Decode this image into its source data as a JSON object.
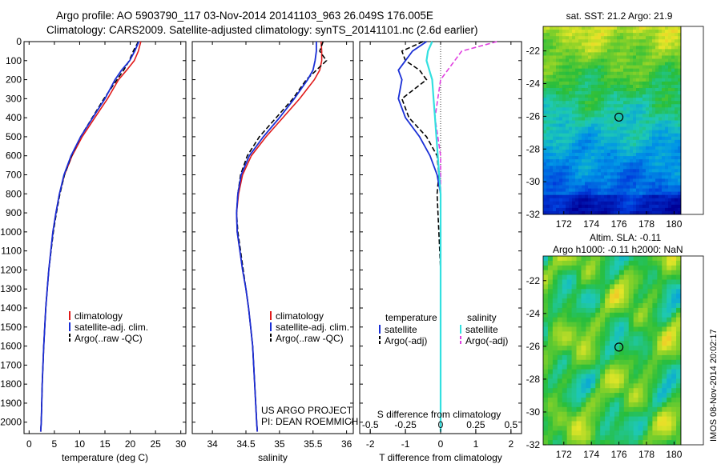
{
  "header": {
    "line1": "Argo profile: AO 5903790_117 03-Nov-2014 20141103_963 26.049S 176.005E",
    "line2": "Climatology: CARS2009. Satellite-adjusted climatology: synTS_20141101.nc (2.6d earlier)"
  },
  "project": {
    "line1": "US ARGO PROJECT",
    "line2": "PI: DEAN ROEMMICH"
  },
  "stamp": "IMOS 08-Nov-2014 20:02:17",
  "colors": {
    "climatology": "#e01b1b",
    "satellite": "#1a2fd6",
    "argo": "#000000",
    "satellite_s": "#33e0e0",
    "argo_s": "#e040e0"
  },
  "chart_data": [
    {
      "type": "line",
      "xlabel": "temperature (deg C)",
      "xlim": [
        -1,
        31
      ],
      "xticks": [
        0,
        5,
        10,
        15,
        20,
        25,
        30
      ],
      "ylim": [
        2060,
        0
      ],
      "yticks": [
        0,
        100,
        200,
        300,
        400,
        500,
        600,
        700,
        800,
        900,
        1000,
        1100,
        1200,
        1300,
        1400,
        1500,
        1600,
        1700,
        1800,
        1900,
        2000
      ],
      "legend": [
        "climatology",
        "satellite-adj. clim.",
        "Argo(..raw -QC)"
      ],
      "series": [
        {
          "name": "climatology",
          "depth": [
            0,
            50,
            100,
            150,
            200,
            250,
            300,
            400,
            500,
            600,
            700,
            800,
            900,
            1000,
            1200,
            1400,
            1600,
            1800,
            2000,
            2050
          ],
          "values": [
            22.1,
            21.6,
            20.8,
            19.3,
            17.7,
            16.6,
            15.5,
            13.0,
            10.5,
            8.5,
            7.0,
            6.0,
            5.3,
            4.7,
            3.9,
            3.3,
            2.9,
            2.6,
            2.4,
            2.3
          ]
        },
        {
          "name": "satellite-adj. clim.",
          "depth": [
            0,
            50,
            100,
            150,
            200,
            250,
            300,
            400,
            500,
            600,
            700,
            800,
            900,
            1000,
            1200,
            1400,
            1600,
            1800,
            2000,
            2050
          ],
          "values": [
            21.7,
            20.9,
            19.9,
            18.3,
            17.0,
            16.0,
            15.0,
            12.6,
            10.2,
            8.3,
            6.9,
            6.0,
            5.3,
            4.7,
            3.9,
            3.3,
            2.9,
            2.6,
            2.4,
            2.3
          ]
        },
        {
          "name": "Argo(..raw -QC)",
          "depth": [
            0,
            50,
            100,
            150,
            200,
            250,
            300,
            400,
            500,
            600,
            700,
            800,
            900,
            1000,
            1200,
            1400,
            1600,
            1800,
            2000,
            2050
          ],
          "values": [
            21.6,
            20.6,
            19.8,
            18.7,
            17.4,
            16.1,
            14.8,
            12.5,
            10.2,
            8.4,
            7.0,
            6.1,
            5.4,
            4.8,
            3.9,
            3.3,
            2.9,
            2.6,
            2.4,
            2.3
          ]
        }
      ]
    },
    {
      "type": "line",
      "xlabel": "salinity",
      "xlim": [
        33.7,
        36.1
      ],
      "xticks": [
        34,
        34.5,
        35,
        35.5,
        36
      ],
      "ylim": [
        2060,
        0
      ],
      "legend": [
        "climatology",
        "satellite-adj. clim.",
        "Argo(..raw -QC)"
      ],
      "series": [
        {
          "name": "climatology",
          "depth": [
            0,
            50,
            100,
            150,
            200,
            300,
            400,
            500,
            600,
            700,
            800,
            900,
            1000,
            1100,
            1200,
            1300,
            1400,
            1500,
            1600,
            1800,
            2000,
            2050
          ],
          "values": [
            35.62,
            35.63,
            35.63,
            35.6,
            35.52,
            35.3,
            35.05,
            34.8,
            34.58,
            34.45,
            34.39,
            34.36,
            34.37,
            34.41,
            34.45,
            34.5,
            34.54,
            34.57,
            34.6,
            34.63,
            34.66,
            34.67
          ]
        },
        {
          "name": "satellite-adj. clim.",
          "depth": [
            0,
            50,
            100,
            150,
            200,
            300,
            400,
            500,
            600,
            700,
            800,
            900,
            1000,
            1100,
            1200,
            1300,
            1400,
            1500,
            1600,
            1800,
            2000,
            2050
          ],
          "values": [
            35.55,
            35.55,
            35.53,
            35.5,
            35.42,
            35.22,
            35.0,
            34.76,
            34.55,
            34.43,
            34.38,
            34.36,
            34.37,
            34.41,
            34.45,
            34.5,
            34.54,
            34.57,
            34.6,
            34.63,
            34.66,
            34.67
          ]
        },
        {
          "name": "Argo(..raw -QC)",
          "depth": [
            0,
            50,
            100,
            150,
            200,
            300,
            400,
            500,
            600,
            700,
            800,
            900,
            1000,
            1100,
            1200,
            1300,
            1400,
            1500,
            1600,
            1800,
            2000,
            2050
          ],
          "values": [
            35.65,
            35.6,
            35.7,
            35.55,
            35.4,
            35.2,
            34.95,
            34.7,
            34.52,
            34.42,
            34.38,
            34.36,
            34.38,
            34.42,
            34.46,
            34.5,
            34.54,
            34.57,
            34.6,
            34.63,
            34.66,
            34.67
          ]
        }
      ]
    },
    {
      "type": "line",
      "xlabel": "T difference from climatology",
      "xlabel_top": "S difference from climatology",
      "xlim": [
        -2.3,
        2.3
      ],
      "xticks": [
        -2,
        -1,
        0,
        1,
        2
      ],
      "sticks": [
        -0.5,
        -0.25,
        0,
        0.25,
        0.5
      ],
      "sticklabels": [
        "-0.5",
        "-0.25",
        "0",
        "0.25",
        "0.5"
      ],
      "ylim": [
        2060,
        0
      ],
      "legend": {
        "temperature": "temperature",
        "salinity": "salinity",
        "items": [
          "satellite",
          "Argo(-adj)",
          "satellite",
          "Argo(-adj)"
        ]
      },
      "series": [
        {
          "name": "satellite",
          "depth": [
            0,
            50,
            100,
            150,
            200,
            300,
            400,
            500,
            600,
            700,
            800,
            1000,
            1200,
            1500,
            2000,
            2050
          ],
          "values": [
            -0.4,
            -0.8,
            -1.0,
            -1.2,
            -1.1,
            -1.2,
            -1.0,
            -0.6,
            -0.3,
            -0.1,
            0.0,
            0.0,
            0.0,
            0.0,
            0.0,
            0.0
          ]
        },
        {
          "name": "Argo(-adj)",
          "depth": [
            0,
            50,
            100,
            150,
            200,
            300,
            400,
            500,
            600,
            700,
            800,
            1000,
            1200,
            1500,
            2000,
            2050
          ],
          "values": [
            -0.5,
            -1.1,
            -1.0,
            -0.6,
            -0.4,
            -1.1,
            -0.9,
            -0.4,
            -0.1,
            -0.05,
            -0.1,
            -0.05,
            0.0,
            0.0,
            0.0,
            0.0
          ]
        },
        {
          "name": "satellite",
          "depth": [
            0,
            50,
            100,
            150,
            200,
            300,
            400,
            500,
            600,
            700,
            800,
            1000,
            1200,
            1500,
            2000,
            2050
          ],
          "values": [
            -0.06,
            -0.09,
            -0.1,
            -0.08,
            -0.06,
            -0.05,
            -0.04,
            -0.03,
            -0.02,
            -0.01,
            0.0,
            0.0,
            0.0,
            0.0,
            0.0,
            0.0
          ]
        },
        {
          "name": "Argo(-adj)",
          "depth": [
            0,
            50,
            100,
            150,
            200,
            300,
            400,
            500,
            600,
            700,
            800,
            1000,
            1200,
            1500,
            2000,
            2050
          ],
          "values": [
            0.4,
            0.15,
            0.1,
            0.05,
            0.0,
            -0.02,
            -0.04,
            -0.02,
            0.0,
            0.0,
            0.0,
            0.0,
            0.0,
            0.0,
            0.0,
            0.0
          ]
        }
      ]
    },
    {
      "type": "heatmap",
      "title": "sat. SST: 21.2  Argo: 21.9",
      "xlim": [
        170.5,
        180.5
      ],
      "xticks": [
        172,
        174,
        176,
        178,
        180
      ],
      "ylim": [
        -32,
        -20.5
      ],
      "yticks": [
        -22,
        -24,
        -26,
        -28,
        -30,
        -32
      ],
      "marker": {
        "lon": 176.0,
        "lat": -26.05
      }
    },
    {
      "type": "heatmap",
      "title": "Altim. SLA: -0.11",
      "subtitle": "Argo h1000: -0.11 h2000: NaN",
      "xlim": [
        170.5,
        180.5
      ],
      "xticks": [
        172,
        174,
        176,
        178,
        180
      ],
      "ylim": [
        -32,
        -20.5
      ],
      "yticks": [
        -22,
        -24,
        -26,
        -28,
        -30,
        -32
      ],
      "marker": {
        "lon": 176.0,
        "lat": -26.05
      }
    }
  ]
}
